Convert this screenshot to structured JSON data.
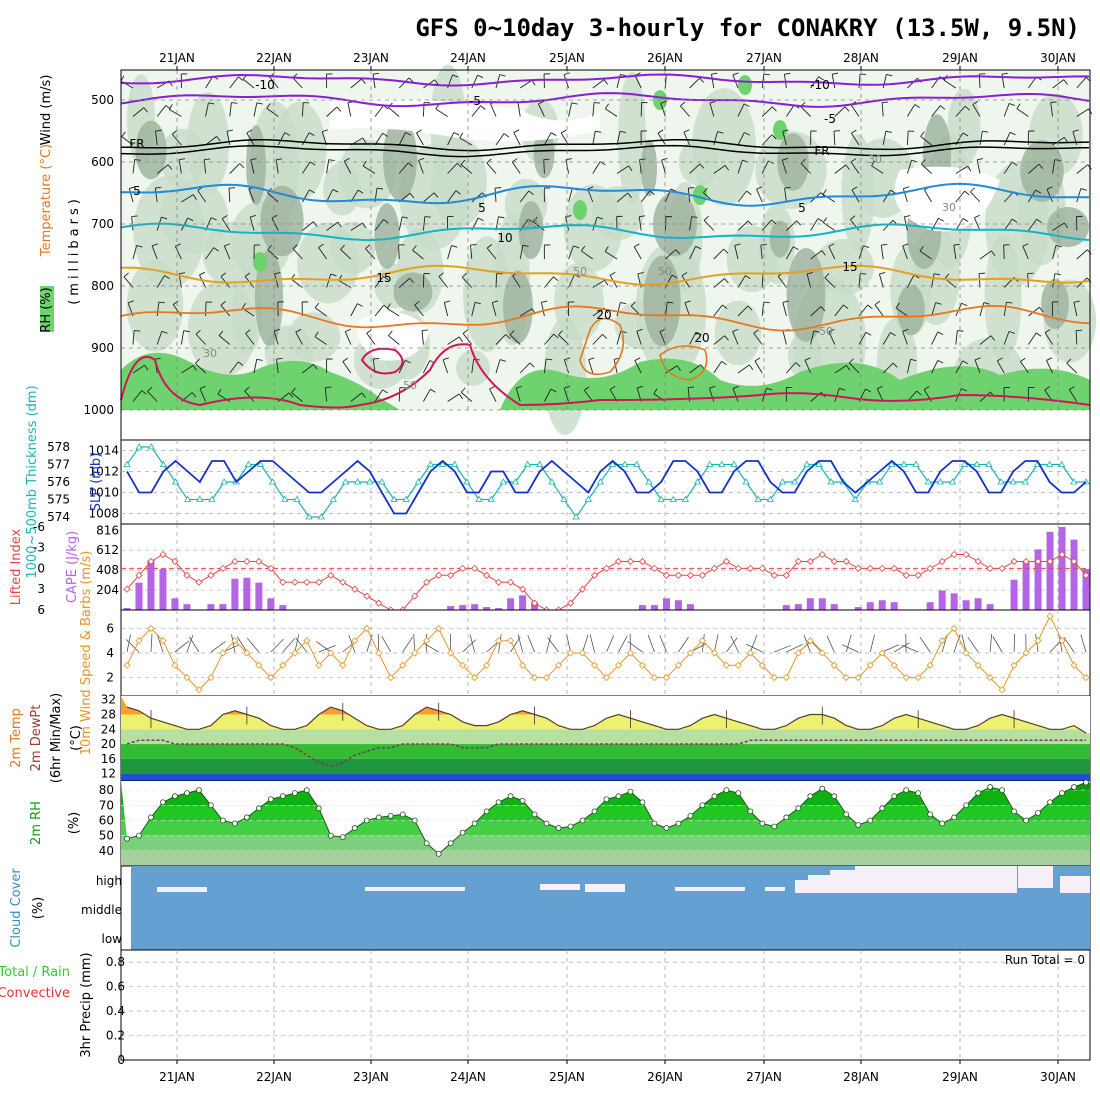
{
  "title": "GFS 0~10day 3-hourly for CONAKRY (13.5W, 9.5N)",
  "dates": [
    "21JAN",
    "22JAN",
    "23JAN",
    "24JAN",
    "25JAN",
    "26JAN",
    "27JAN",
    "28JAN",
    "29JAN",
    "30JAN"
  ],
  "colors": {
    "rh_light": "#e6f2e6",
    "rh_mid": "#c8dcc8",
    "rh_dark": "#a0b4a0",
    "rh_green": "#6ed26e",
    "purple": "#8a1ed2",
    "black": "#000000",
    "blue": "#1e8cdc",
    "cyan": "#14b4c8",
    "yellow": "#e6a01e",
    "orange": "#e6781e",
    "magenta": "#d2145a",
    "slp": "#1432c8",
    "thick": "#1eb4b4",
    "cape": "#b464e6",
    "li": "#e64646",
    "wind": "#e69628",
    "cloud": "#64a0d2",
    "cloud_white": "#f5f0f8"
  },
  "panel_upper": {
    "ylabel_rh": "RH (%)",
    "ylabel_temp": "Temperature (°C)",
    "ylabel_wind": "Wind (m/s)",
    "ylabel_mb": "(millibars)",
    "levels": [
      "500",
      "600",
      "700",
      "800",
      "900",
      "1000"
    ],
    "contour_labels": [
      "-10",
      "-10",
      "-5",
      "-5",
      "FR",
      "FR",
      "5",
      "5",
      "5",
      "10",
      "15",
      "15",
      "20",
      "20",
      "30",
      "30",
      "30",
      "50",
      "50",
      "50",
      "50",
      "30"
    ]
  },
  "chart_data": [
    {
      "type": "line",
      "title": "SLP (mb) / 1000~500mb Thickness (dm)",
      "ylabel": "SLP (mb)",
      "ylabel2": "1000~500mb Thickness (dm)",
      "yticks": [
        "1014",
        "1012",
        "1010",
        "1008"
      ],
      "yticks2": [
        "578",
        "577",
        "576",
        "575",
        "574"
      ],
      "series": [
        {
          "name": "SLP",
          "values": [
            1012,
            1010,
            1010,
            1012,
            1013,
            1012,
            1011,
            1013,
            1013,
            1011,
            1012,
            1013,
            1013,
            1012,
            1011,
            1010,
            1010,
            1011,
            1012,
            1013,
            1012,
            1010,
            1008,
            1008,
            1010,
            1012,
            1013,
            1012,
            1010,
            1010,
            1012,
            1012,
            1010,
            1010,
            1012,
            1013,
            1012,
            1011,
            1010,
            1012,
            1013,
            1012,
            1010,
            1010,
            1011,
            1013,
            1013,
            1012,
            1010,
            1010,
            1012,
            1013,
            1013,
            1011,
            1010,
            1010,
            1012,
            1013,
            1013,
            1011,
            1010,
            1011,
            1012,
            1013,
            1012,
            1010,
            1010,
            1012,
            1013,
            1013,
            1012,
            1010,
            1010,
            1012,
            1013,
            1013,
            1011,
            1010,
            1010,
            1011
          ]
        },
        {
          "name": "Thickness",
          "values": [
            577,
            578,
            578,
            577,
            576,
            575,
            575,
            575,
            576,
            576,
            577,
            577,
            576,
            575,
            575,
            574,
            574,
            575,
            576,
            576,
            576,
            576,
            575,
            575,
            576,
            577,
            577,
            577,
            576,
            575,
            575,
            576,
            576,
            577,
            577,
            576,
            575,
            574,
            575,
            576,
            577,
            577,
            577,
            576,
            575,
            575,
            575,
            576,
            577,
            577,
            577,
            576,
            575,
            575,
            576,
            576,
            577,
            577,
            576,
            576,
            575,
            576,
            576,
            577,
            577,
            577,
            576,
            576,
            576,
            577,
            577,
            577,
            576,
            576,
            576,
            577,
            577,
            577,
            576,
            576
          ]
        }
      ]
    },
    {
      "type": "bar",
      "title": "CAPE (J/kg) / Lifted Index",
      "ylabel": "CAPE (J/kg)",
      "ylabel2": "Lifted Index",
      "yticks": [
        "816",
        "612",
        "408",
        "204"
      ],
      "yticks2": [
        "-6",
        "-3",
        "0",
        "3",
        "6"
      ],
      "series": [
        {
          "name": "CAPE",
          "values": [
            20,
            280,
            510,
            420,
            120,
            60,
            0,
            60,
            60,
            320,
            330,
            280,
            120,
            50,
            0,
            0,
            0,
            0,
            0,
            0,
            0,
            0,
            0,
            0,
            0,
            0,
            0,
            40,
            50,
            60,
            30,
            20,
            120,
            150,
            80,
            0,
            0,
            0,
            0,
            0,
            0,
            0,
            0,
            50,
            50,
            120,
            100,
            60,
            0,
            0,
            0,
            0,
            0,
            0,
            0,
            50,
            60,
            120,
            120,
            60,
            0,
            30,
            80,
            100,
            80,
            0,
            0,
            80,
            200,
            170,
            100,
            120,
            60,
            0,
            310,
            500,
            620,
            800,
            850,
            720,
            420
          ]
        },
        {
          "name": "Lifted Index",
          "values": [
            3,
            1,
            -1,
            -2,
            -1,
            1,
            2,
            1,
            0,
            -1,
            -1,
            -1,
            0,
            2,
            2,
            2,
            2,
            1,
            2,
            3,
            4,
            5,
            6,
            6,
            4,
            2,
            1,
            1,
            0,
            0,
            1,
            2,
            2,
            3,
            5,
            6,
            6,
            5,
            3,
            1,
            0,
            -1,
            -1,
            -1,
            0,
            1,
            1,
            1,
            1,
            0,
            -1,
            0,
            0,
            0,
            1,
            1,
            -1,
            -1,
            -2,
            -1,
            -1,
            0,
            0,
            0,
            0,
            1,
            1,
            0,
            -1,
            -2,
            -2,
            -1,
            0,
            0,
            -1,
            -1,
            -1,
            -1,
            -2,
            -1,
            1
          ]
        }
      ]
    },
    {
      "type": "line",
      "title": "10m Wind Speed & Barbs",
      "ylabel": "10m Wind Speed & Barbs (m/s)",
      "yticks": [
        "6",
        "4",
        "2"
      ],
      "series": [
        {
          "name": "Wind speed",
          "values": [
            3,
            5,
            6,
            5,
            3,
            2,
            1,
            2,
            4,
            5,
            4,
            3,
            2,
            3,
            4,
            5,
            3,
            4,
            3,
            5,
            6,
            4,
            2,
            3,
            4,
            5,
            6,
            4,
            3,
            2,
            3,
            5,
            5,
            3,
            2,
            2,
            3,
            4,
            4,
            3,
            2,
            3,
            4,
            3,
            2,
            2,
            3,
            4,
            5,
            4,
            3,
            3,
            4,
            3,
            2,
            2,
            4,
            5,
            4,
            3,
            2,
            2,
            3,
            4,
            3,
            2,
            2,
            3,
            5,
            6,
            4,
            3,
            2,
            1,
            3,
            4,
            5,
            7,
            5,
            3,
            2
          ]
        }
      ]
    },
    {
      "type": "area",
      "title": "2m Temp / 2m DewPt (6hr Min/Max)",
      "ylabel": "2m Temp 2m DewPt (6hr Min/Max) (°C)",
      "yticks": [
        "32",
        "28",
        "24",
        "20",
        "16",
        "12"
      ],
      "ylim": [
        10,
        32
      ],
      "series": [
        {
          "name": "2m Temp",
          "values": [
            30,
            29,
            27,
            26,
            25,
            24,
            24,
            25,
            28,
            29,
            28,
            27,
            25,
            24,
            24,
            25,
            28,
            30,
            29,
            27,
            25,
            24,
            24,
            25,
            28,
            30,
            29,
            28,
            26,
            25,
            25,
            26,
            28,
            29,
            28,
            27,
            25,
            24,
            24,
            25,
            27,
            28,
            27,
            26,
            25,
            24,
            24,
            25,
            27,
            28,
            27,
            26,
            25,
            24,
            24,
            25,
            27,
            28,
            28,
            27,
            25,
            24,
            24,
            25,
            27,
            28,
            27,
            26,
            25,
            24,
            24,
            25,
            27,
            28,
            27,
            26,
            25,
            24,
            24,
            25,
            23
          ]
        },
        {
          "name": "2m DewPt",
          "values": [
            20,
            21,
            21,
            21,
            20,
            20,
            20,
            20,
            20,
            20,
            20,
            20,
            20,
            20,
            19,
            17,
            15,
            14,
            15,
            17,
            18,
            19,
            19,
            20,
            20,
            20,
            20,
            20,
            19,
            19,
            19,
            20,
            20,
            20,
            20,
            20,
            20,
            20,
            20,
            20,
            20,
            20,
            20,
            20,
            20,
            20,
            20,
            20,
            20,
            20,
            20,
            20,
            21,
            21,
            21,
            21,
            21,
            21,
            21,
            21,
            21,
            21,
            21,
            21,
            21,
            21,
            21,
            21,
            21,
            21,
            21,
            21,
            21,
            21,
            21,
            21,
            21,
            21,
            21,
            21,
            21
          ]
        }
      ]
    },
    {
      "type": "area",
      "title": "2m RH",
      "ylabel": "2m RH (%)",
      "yticks": [
        "80",
        "70",
        "60",
        "50",
        "40"
      ],
      "ylim": [
        30,
        85
      ],
      "series": [
        {
          "name": "2m RH",
          "values": [
            48,
            50,
            62,
            72,
            76,
            78,
            80,
            70,
            60,
            58,
            62,
            68,
            74,
            76,
            78,
            80,
            68,
            50,
            49,
            55,
            60,
            62,
            63,
            64,
            60,
            45,
            38,
            45,
            52,
            58,
            66,
            72,
            76,
            73,
            64,
            58,
            55,
            56,
            60,
            66,
            74,
            76,
            79,
            72,
            58,
            55,
            58,
            63,
            70,
            76,
            80,
            78,
            66,
            58,
            56,
            62,
            68,
            76,
            81,
            76,
            64,
            57,
            60,
            68,
            76,
            80,
            78,
            64,
            58,
            62,
            70,
            78,
            82,
            80,
            66,
            60,
            65,
            72,
            78,
            82,
            85
          ]
        }
      ]
    },
    {
      "type": "area",
      "title": "Cloud Cover",
      "ylabel": "Cloud Cover (%)",
      "yticks": [
        "high",
        "middle",
        "low"
      ]
    },
    {
      "type": "bar",
      "title": "3hr Precip",
      "ylabel": "3hr Precip (mm)",
      "ylabel_legend_a": "Total / Rain",
      "ylabel_legend_b": "Convective",
      "yticks": [
        "0.8",
        "0.6",
        "0.4",
        "0.2",
        "0"
      ],
      "ylim": [
        0,
        0.9
      ],
      "run_total": "Run Total = 0",
      "series": [
        {
          "name": "Precip",
          "values": []
        }
      ]
    }
  ]
}
